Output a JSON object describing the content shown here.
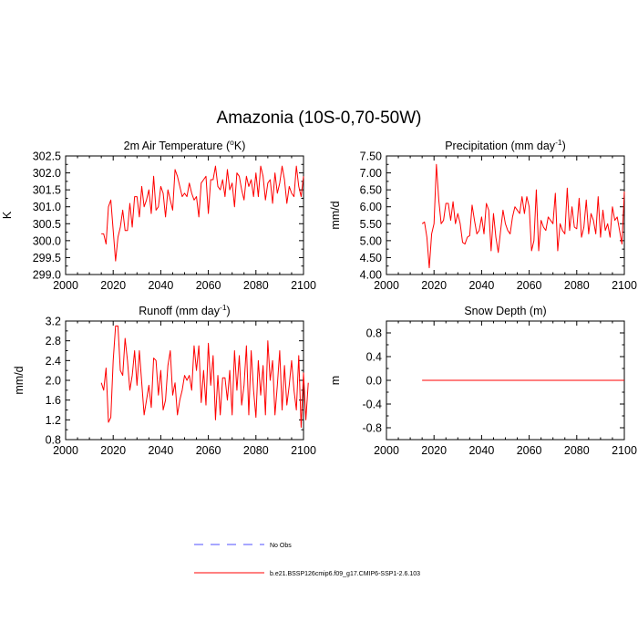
{
  "figure": {
    "title": "Amazonia (10S-0,70-50W)"
  },
  "colors": {
    "series": "#ff0000",
    "obs": "#4f4fff",
    "frame": "#000000"
  },
  "legend": {
    "items": [
      {
        "label": "No Obs",
        "style": "dashed",
        "color": "#4f4fff"
      },
      {
        "label": "b.e21.BSSP126cmip6.f09_g17.CMIP6-SSP1-2.6.103",
        "style": "solid",
        "color": "#ff0000"
      }
    ]
  },
  "chart_data": [
    {
      "id": "temp",
      "type": "line",
      "title": "2m Air Temperature (",
      "title_sup": "o",
      "title_end": "K)",
      "xlabel": "",
      "ylabel": "K",
      "xlim": [
        2000,
        2100
      ],
      "ylim": [
        299.0,
        302.5
      ],
      "xticks": [
        "2000",
        "2020",
        "2040",
        "2060",
        "2080",
        "2100"
      ],
      "yticks": [
        "299.0",
        "299.5",
        "300.0",
        "300.5",
        "301.0",
        "301.5",
        "302.0",
        "302.5"
      ],
      "x_start": 2015,
      "series": [
        {
          "name": "b.e21.BSSP126cmip6.f09_g17.CMIP6-SSP1-2.6.103",
          "values": [
            300.2,
            300.2,
            299.9,
            301.0,
            301.2,
            300.3,
            299.4,
            300.1,
            300.4,
            300.9,
            300.3,
            300.3,
            301.1,
            300.4,
            301.3,
            301.3,
            300.7,
            301.6,
            301.0,
            301.2,
            301.5,
            300.8,
            301.9,
            300.9,
            301.0,
            301.6,
            301.4,
            300.7,
            301.5,
            301.2,
            300.9,
            302.1,
            301.9,
            301.6,
            301.3,
            301.4,
            301.3,
            301.7,
            301.4,
            301.2,
            301.3,
            300.7,
            301.7,
            301.8,
            301.9,
            300.8,
            301.8,
            301.8,
            302.2,
            301.6,
            301.5,
            301.8,
            301.3,
            302.1,
            301.5,
            301.7,
            301.0,
            302.0,
            301.9,
            301.5,
            301.2,
            301.9,
            301.6,
            301.8,
            301.3,
            302.0,
            301.3,
            302.2,
            301.9,
            301.2,
            301.7,
            301.8,
            301.1,
            302.0,
            301.4,
            301.7,
            302.2,
            301.8,
            301.1,
            301.6,
            301.4,
            301.3,
            302.2,
            301.6,
            301.3,
            301.9
          ]
        }
      ]
    },
    {
      "id": "precip",
      "type": "line",
      "title": "Precipitation (mm day",
      "title_sup": "-1",
      "title_end": ")",
      "xlabel": "",
      "ylabel": "mm/d",
      "xlim": [
        2000,
        2100
      ],
      "ylim": [
        4.0,
        7.5
      ],
      "xticks": [
        "2000",
        "2020",
        "2040",
        "2060",
        "2080",
        "2100"
      ],
      "yticks": [
        "4.00",
        "4.50",
        "5.00",
        "5.50",
        "6.00",
        "6.50",
        "7.00",
        "7.50"
      ],
      "x_start": 2015,
      "series": [
        {
          "name": "b.e21.BSSP126cmip6.f09_g17.CMIP6-SSP1-2.6.103",
          "values": [
            5.5,
            5.55,
            5.1,
            4.2,
            5.2,
            5.5,
            7.25,
            6.2,
            5.5,
            5.6,
            6.1,
            6.1,
            5.6,
            6.15,
            5.5,
            5.8,
            5.5,
            4.95,
            4.9,
            5.1,
            5.15,
            6.05,
            5.6,
            5.2,
            5.3,
            5.7,
            5.2,
            6.1,
            5.9,
            4.7,
            5.8,
            5.1,
            4.65,
            5.3,
            5.9,
            5.5,
            5.3,
            5.2,
            5.7,
            6.0,
            5.9,
            5.8,
            6.3,
            5.8,
            6.3,
            6.0,
            4.7,
            5.0,
            6.5,
            4.7,
            5.6,
            5.4,
            5.3,
            5.7,
            5.6,
            5.5,
            6.4,
            4.7,
            5.5,
            5.3,
            5.2,
            6.55,
            5.3,
            6.0,
            5.4,
            5.35,
            6.25,
            5.1,
            5.4,
            6.2,
            5.2,
            5.8,
            5.6,
            5.2,
            6.3,
            5.1,
            5.9,
            5.3,
            5.5,
            5.1,
            6.0,
            5.6,
            5.7,
            5.3,
            4.9,
            6.45
          ]
        }
      ]
    },
    {
      "id": "runoff",
      "type": "line",
      "title": "Runoff (mm day",
      "title_sup": "-1",
      "title_end": ")",
      "xlabel": "",
      "ylabel": "mm/d",
      "xlim": [
        2000,
        2100
      ],
      "ylim": [
        0.8,
        3.2
      ],
      "xticks": [
        "2000",
        "2020",
        "2040",
        "2060",
        "2080",
        "2100"
      ],
      "yticks": [
        "0.8",
        "1.2",
        "1.6",
        "2.0",
        "2.4",
        "2.8",
        "3.2"
      ],
      "x_start": 2015,
      "series": [
        {
          "name": "b.e21.BSSP126cmip6.f09_g17.CMIP6-SSP1-2.6.103",
          "values": [
            1.95,
            1.8,
            2.25,
            1.15,
            1.25,
            2.4,
            3.1,
            3.1,
            2.2,
            2.1,
            2.85,
            2.4,
            1.8,
            2.1,
            2.6,
            1.9,
            2.6,
            1.95,
            1.3,
            1.6,
            1.9,
            1.45,
            2.45,
            2.4,
            1.7,
            2.2,
            1.4,
            1.6,
            2.3,
            2.6,
            1.7,
            1.95,
            1.3,
            1.6,
            1.8,
            2.1,
            2.0,
            2.1,
            1.8,
            2.7,
            2.2,
            2.7,
            1.55,
            2.2,
            1.5,
            2.75,
            1.9,
            2.5,
            1.2,
            2.1,
            1.3,
            2.05,
            2.05,
            1.6,
            2.2,
            1.3,
            2.6,
            1.8,
            2.5,
            1.5,
            1.9,
            2.7,
            1.3,
            2.6,
            1.8,
            1.25,
            2.4,
            1.7,
            2.3,
            1.3,
            2.8,
            2.0,
            2.4,
            1.3,
            1.9,
            2.6,
            1.4,
            2.3,
            1.5,
            1.9,
            2.4,
            1.8,
            1.4,
            2.5,
            1.05,
            2.15,
            1.2,
            1.95
          ]
        }
      ]
    },
    {
      "id": "snow",
      "type": "line",
      "title": "Snow Depth (m)",
      "title_sup": "",
      "title_end": "",
      "xlabel": "",
      "ylabel": "m",
      "xlim": [
        2000,
        2100
      ],
      "ylim": [
        -1.0,
        1.0
      ],
      "xticks": [
        "2000",
        "2020",
        "2040",
        "2060",
        "2080",
        "2100"
      ],
      "yticks": [
        "-0.8",
        "-0.4",
        "0.0",
        "0.4",
        "0.8"
      ],
      "ytick_values": [
        -0.8,
        -0.4,
        0.0,
        0.4,
        0.8
      ],
      "x_start": 2015,
      "x_end": 2100,
      "series": [
        {
          "name": "b.e21.BSSP126cmip6.f09_g17.CMIP6-SSP1-2.6.103",
          "values": [
            0.0,
            0.0
          ]
        }
      ]
    }
  ]
}
